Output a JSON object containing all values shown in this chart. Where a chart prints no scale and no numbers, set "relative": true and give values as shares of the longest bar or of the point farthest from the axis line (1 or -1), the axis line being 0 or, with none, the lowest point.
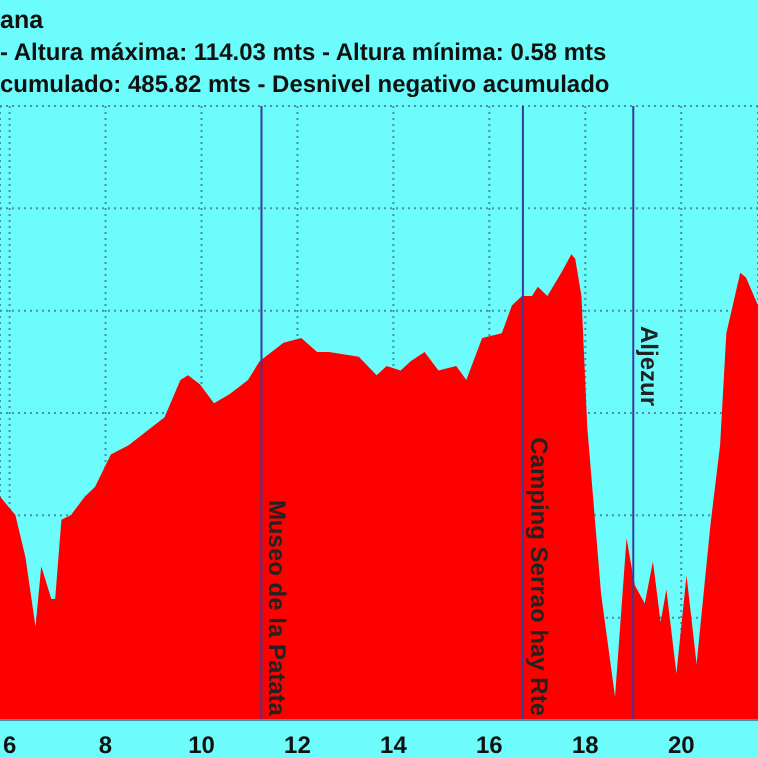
{
  "chart_data": {
    "type": "area",
    "title": "ana",
    "subtitle": "- Altura máxima: 114.03 mts - Altura mínima: 0.58 mts",
    "annotations": [
      "cumulado: 485.82 mts - Desnivel negativo acumulado"
    ],
    "relative": true,
    "color": "#ff0000",
    "x": [
      5.8,
      6.12,
      6.33,
      6.54,
      6.66,
      6.87,
      6.95,
      7.08,
      7.28,
      7.57,
      7.78,
      8.11,
      8.48,
      9.23,
      9.56,
      9.72,
      9.97,
      10.26,
      10.59,
      10.97,
      11.21,
      11.71,
      12.08,
      12.41,
      12.66,
      13.28,
      13.65,
      13.86,
      14.15,
      14.36,
      14.65,
      14.94,
      15.31,
      15.52,
      15.85,
      16.26,
      16.47,
      16.68,
      16.89,
      17.01,
      17.21,
      17.5,
      17.71,
      17.79,
      17.92,
      18.04,
      18.33,
      18.62,
      18.86,
      19.03,
      19.24,
      19.41,
      19.57,
      19.69,
      19.9,
      20.11,
      20.32,
      20.61,
      20.81,
      20.94,
      21.23,
      21.35,
      21.6
    ],
    "values": [
      0.48,
      0.44,
      0.35,
      0.2,
      0.33,
      0.26,
      0.26,
      0.43,
      0.44,
      0.48,
      0.5,
      0.57,
      0.59,
      0.65,
      0.73,
      0.74,
      0.72,
      0.68,
      0.7,
      0.73,
      0.77,
      0.81,
      0.82,
      0.79,
      0.79,
      0.78,
      0.74,
      0.76,
      0.75,
      0.77,
      0.79,
      0.75,
      0.76,
      0.73,
      0.82,
      0.83,
      0.89,
      0.91,
      0.91,
      0.93,
      0.91,
      0.96,
      1,
      0.99,
      0.91,
      0.63,
      0.27,
      0.05,
      0.39,
      0.29,
      0.25,
      0.34,
      0.21,
      0.28,
      0.1,
      0.31,
      0.12,
      0.42,
      0.59,
      0.83,
      0.96,
      0.95,
      0.89
    ],
    "xlim": [
      5.8,
      21.6
    ],
    "xticks": [
      6,
      8,
      10,
      12,
      14,
      16,
      18,
      20
    ],
    "grid": true,
    "ref_lines": [
      {
        "axis": "x",
        "value": 11.25,
        "label": "Museo de la Patata",
        "color": "#3a3a9a"
      },
      {
        "axis": "x",
        "value": 16.7,
        "label": "Camping Serrao hay Rte",
        "color": "#3a3a9a"
      },
      {
        "axis": "x",
        "value": 19.0,
        "label": "Aljezur",
        "color": "#3a3a9a"
      }
    ]
  }
}
